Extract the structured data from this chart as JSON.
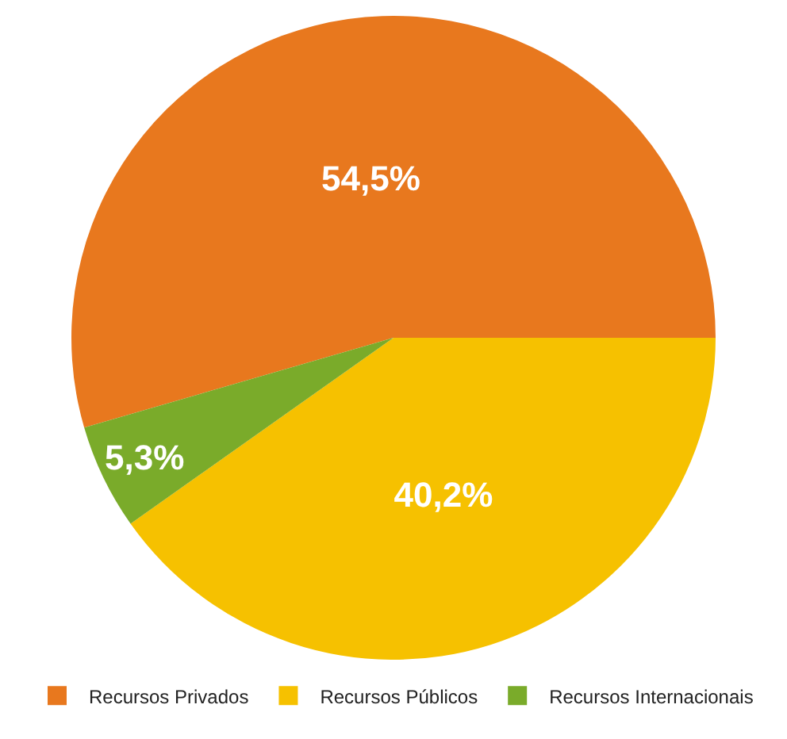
{
  "chart_data": {
    "type": "pie",
    "categories": [
      "Recursos Privados",
      "Recursos Públicos",
      "Recursos Internacionais"
    ],
    "values": [
      54.5,
      40.2,
      5.3
    ],
    "colors": [
      "#e8781e",
      "#f6c100",
      "#7aab2a"
    ],
    "value_labels": [
      "54,5%",
      "40,2%",
      "5,3%"
    ],
    "legend": "bottom"
  }
}
